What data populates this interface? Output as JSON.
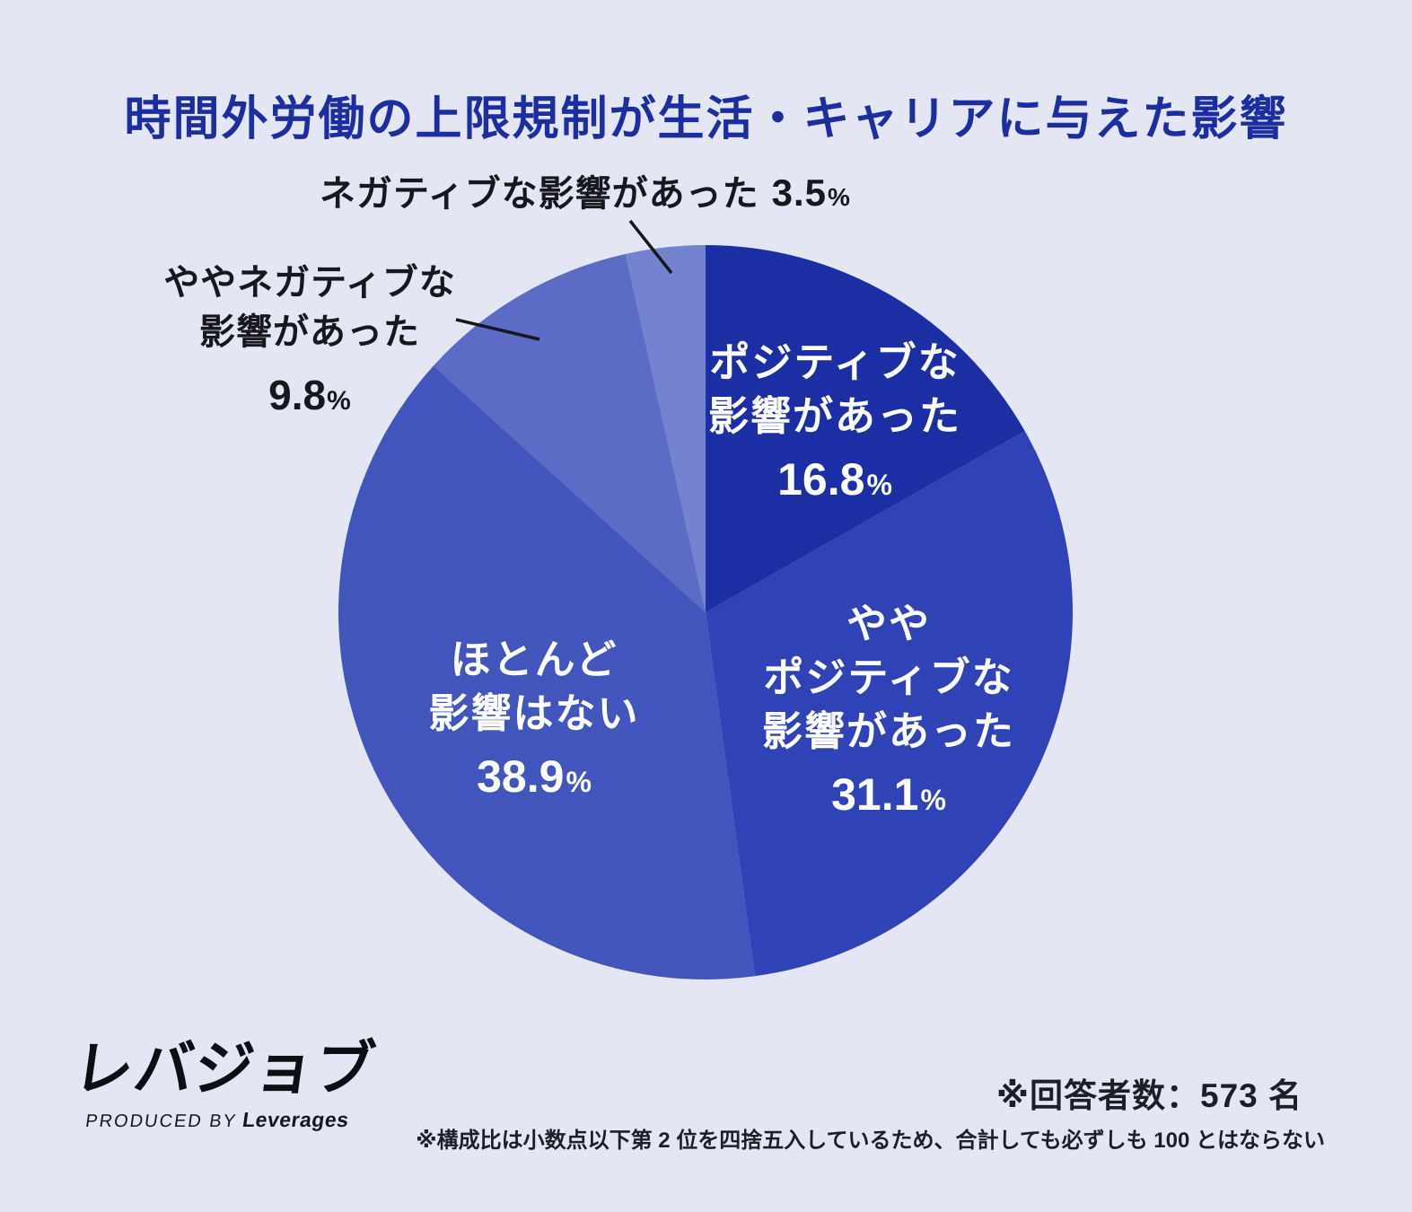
{
  "title": "時間外労働の上限規制が生活・キャリアに与えた影響",
  "chart_data": {
    "type": "pie",
    "unit": "%",
    "start_angle_deg": 0,
    "direction": "clockwise",
    "legend_position": "labels-on-chart",
    "slices": [
      {
        "name": "positive",
        "label": "ポジティブな影響があった",
        "label_lines": [
          "ポジティブな",
          "影響があった"
        ],
        "value": 16.8,
        "color": "#1c2ea3",
        "label_placement": "inside"
      },
      {
        "name": "somewhat-positive",
        "label": "ややポジティブな影響があった",
        "label_lines": [
          "やや",
          "ポジティブな",
          "影響があった"
        ],
        "value": 31.1,
        "color": "#2f42b6",
        "label_placement": "inside"
      },
      {
        "name": "no-effect",
        "label": "ほとんど影響はない",
        "label_lines": [
          "ほとんど",
          "影響はない"
        ],
        "value": 38.9,
        "color": "#4255bd",
        "label_placement": "inside"
      },
      {
        "name": "somewhat-negative",
        "label": "ややネガティブな影響があった",
        "label_lines": [
          "ややネガティブな",
          "影響があった"
        ],
        "value": 9.8,
        "color": "#5b6bc6",
        "label_placement": "outside-left"
      },
      {
        "name": "negative",
        "label": "ネガティブな影響があった",
        "label_lines": [
          "ネガティブな影響があった"
        ],
        "value": 3.5,
        "color": "#7383cf",
        "label_placement": "outside-top"
      }
    ]
  },
  "footer": {
    "logo_text": "レバジョブ",
    "logo_sub_prefix": "PRODUCED BY",
    "logo_sub_brand": "Leverages",
    "respondents_note": "※回答者数：573 名",
    "rounding_note": "※構成比は小数点以下第 2 位を四捨五入しているため、合計しても必ずしも 100 とはならない"
  },
  "colors": {
    "background": "#e4e6f3",
    "title": "#1c2da0",
    "outside_label_text": "#17181d",
    "inside_label_text": "#ffffff",
    "leader_line": "#17181d"
  }
}
